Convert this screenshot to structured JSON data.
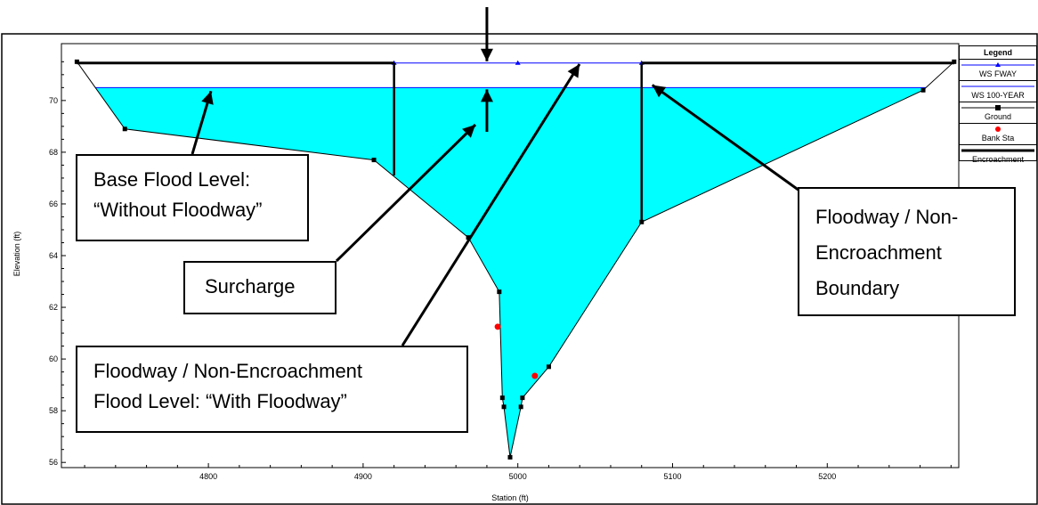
{
  "chart_data": {
    "type": "area",
    "xlabel": "Station (ft)",
    "ylabel": "Elevation (ft)",
    "xlim": [
      4705,
      5285
    ],
    "ylim": [
      55.8,
      72.2
    ],
    "xticks": [
      4800,
      4900,
      5000,
      5100,
      5200
    ],
    "yticks": [
      56,
      58,
      60,
      62,
      64,
      66,
      68,
      70
    ],
    "ground": {
      "name": "Ground",
      "x": [
        4715,
        4746,
        4907,
        4968,
        4988,
        4990,
        4991,
        4995,
        5002,
        5003,
        5020,
        5080,
        5262,
        5282
      ],
      "y": [
        71.5,
        68.9,
        67.7,
        64.7,
        62.6,
        58.5,
        58.15,
        56.2,
        58.15,
        58.5,
        59.7,
        65.3,
        70.4,
        71.5
      ]
    },
    "bank_stations": {
      "name": "Bank Sta",
      "x": [
        4987,
        5011
      ],
      "y": [
        61.25,
        59.35
      ]
    },
    "ws_100_year": {
      "name": "WS 100-YEAR",
      "elevation": 70.5
    },
    "ws_fway": {
      "name": "WS FWAY",
      "elevation": 71.45,
      "x_start": 4920,
      "x_end": 5080,
      "marker_x": [
        4920,
        5000,
        5080
      ]
    },
    "encroachment": {
      "name": "Encroachment",
      "elevation": 71.45,
      "left_station": 4920,
      "right_station": 5080
    },
    "colors": {
      "fill": "#00ffff",
      "ws_lines": "#0000ff",
      "ground": "#000000",
      "bank": "#ff0000",
      "encroachment": "#000000"
    }
  },
  "legend": {
    "title": "Legend",
    "items": [
      "WS FWAY",
      "WS 100-YEAR",
      "Ground",
      "Bank Sta",
      "Encroachment"
    ]
  },
  "callouts": {
    "base_flood": {
      "line1": "Base Flood Level:",
      "line2": "“Without Floodway”"
    },
    "surcharge": {
      "line1": "Surcharge"
    },
    "floodway_level": {
      "line1": "Floodway / Non-Encroachment",
      "line2": "Flood Level: “With Floodway”"
    },
    "boundary": {
      "line1": "Floodway / Non-",
      "line2": "Encroachment",
      "line3": "Boundary"
    }
  }
}
